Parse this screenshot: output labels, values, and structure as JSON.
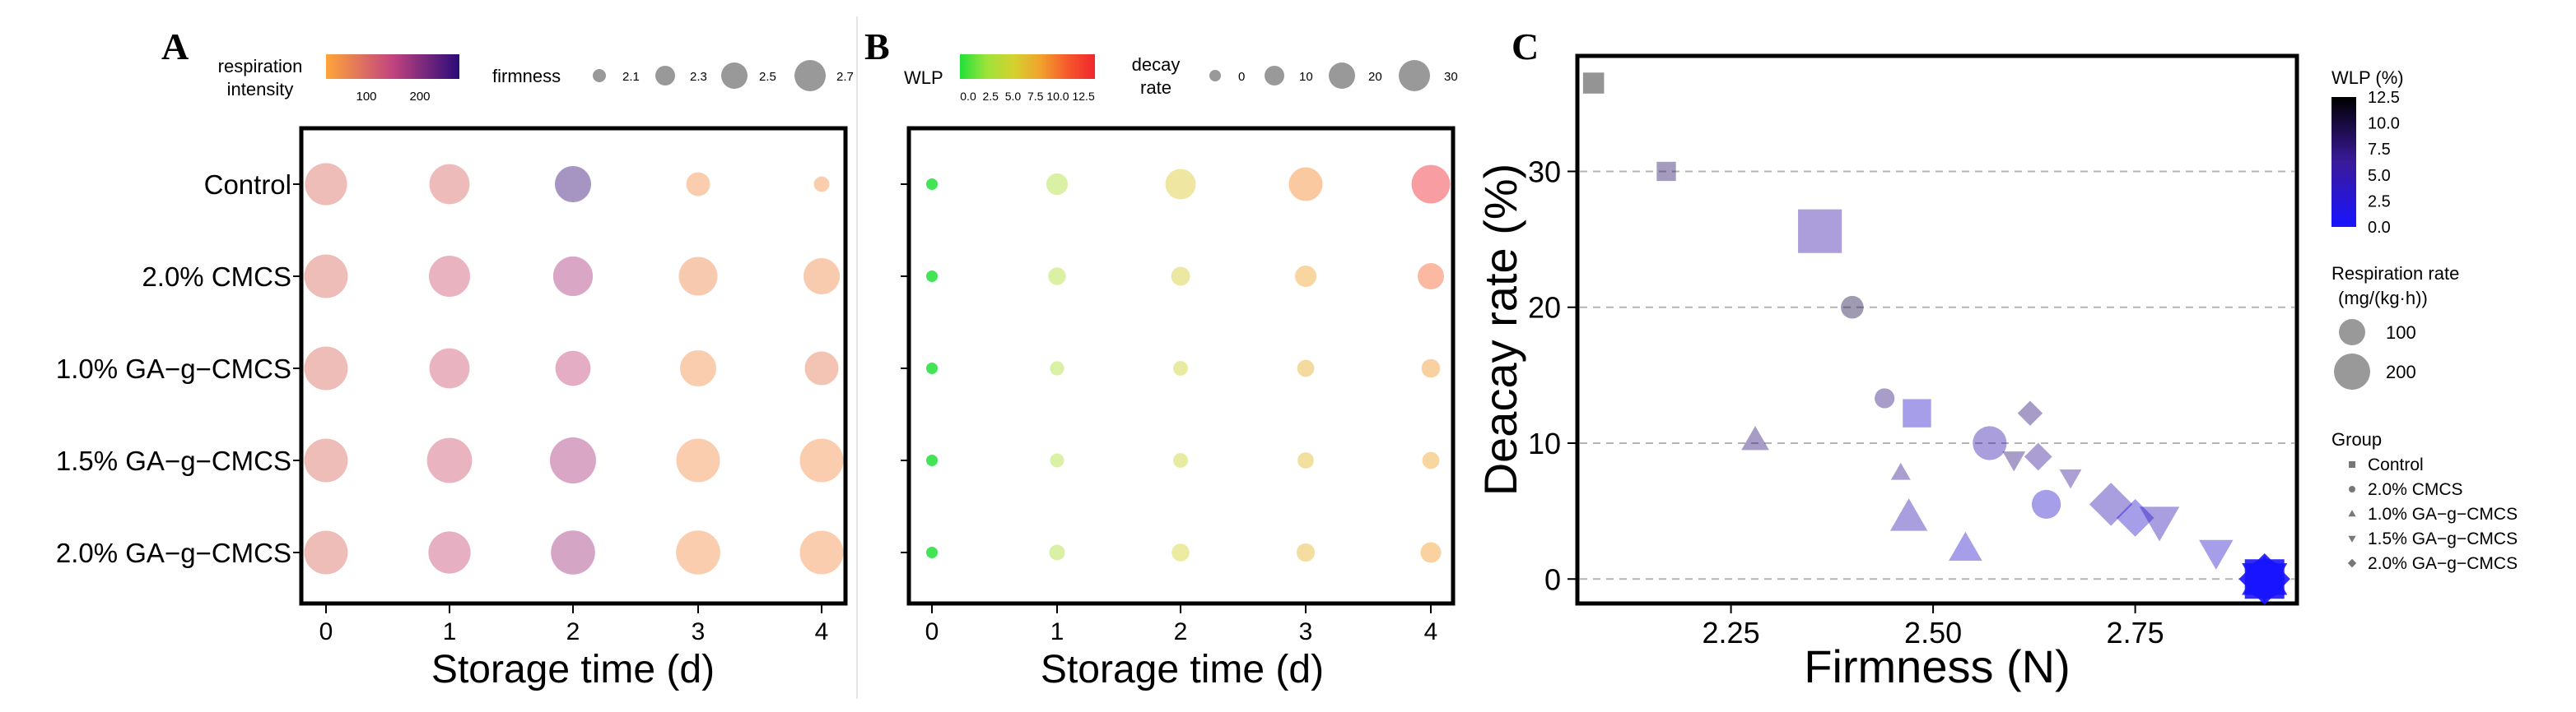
{
  "chart_data": [
    {
      "panel": "A",
      "type": "scatter",
      "xlabel": "Storage time (d)",
      "x_ticks": [
        "0",
        "1",
        "2",
        "3",
        "4"
      ],
      "categories": [
        "Control",
        "2.0% CMCS",
        "1.0% GA−g−CMCS",
        "1.5% GA−g−CMCS",
        "2.0% GA−g−CMCS"
      ],
      "color_legend": {
        "title": "respiration\nintensity",
        "ticks": [
          100,
          200
        ],
        "range": [
          50,
          240
        ]
      },
      "size_legend": {
        "title": "firmness",
        "ticks": [
          "2.1",
          "2.3",
          "2.5",
          "2.7"
        ]
      },
      "series": [
        {
          "name": "Control",
          "firmness": [
            2.62,
            2.58,
            2.5,
            2.25,
            2.08
          ],
          "respiration": [
            105,
            110,
            230,
            70,
            68
          ]
        },
        {
          "name": "2.0% CMCS",
          "firmness": [
            2.65,
            2.6,
            2.57,
            2.55,
            2.5
          ],
          "respiration": [
            105,
            125,
            160,
            78,
            75
          ]
        },
        {
          "name": "1.0% GA−g−CMCS",
          "firmness": [
            2.65,
            2.58,
            2.48,
            2.5,
            2.45
          ],
          "respiration": [
            105,
            125,
            140,
            70,
            90
          ]
        },
        {
          "name": "1.5% GA−g−CMCS",
          "firmness": [
            2.65,
            2.68,
            2.7,
            2.65,
            2.65
          ],
          "respiration": [
            105,
            125,
            160,
            70,
            70
          ]
        },
        {
          "name": "2.0% GA−g−CMCS",
          "firmness": [
            2.65,
            2.62,
            2.66,
            2.66,
            2.65
          ],
          "respiration": [
            105,
            135,
            165,
            70,
            70
          ]
        }
      ]
    },
    {
      "panel": "B",
      "type": "scatter",
      "xlabel": "Storage time (d)",
      "x_ticks": [
        "0",
        "1",
        "2",
        "3",
        "4"
      ],
      "categories": [
        "Control",
        "2.0% CMCS",
        "1.0% GA−g−CMCS",
        "1.5% GA−g−CMCS",
        "2.0% GA−g−CMCS"
      ],
      "color_legend": {
        "title": "WLP",
        "ticks": [
          "0.0",
          "2.5",
          "5.0",
          "7.5",
          "10.0",
          "12.5"
        ],
        "range": [
          0,
          12.5
        ]
      },
      "size_legend": {
        "title": "decay\nrate",
        "ticks": [
          "0",
          "10",
          "20",
          "30"
        ]
      },
      "series": [
        {
          "name": "Control",
          "wlp": [
            0,
            3.2,
            5.5,
            8.4,
            12.5
          ],
          "decay": [
            0,
            13.5,
            25.6,
            30,
            36.5
          ]
        },
        {
          "name": "2.0% CMCS",
          "wlp": [
            0,
            3.4,
            5.2,
            7.5,
            9.6
          ],
          "decay": [
            0,
            8.2,
            10,
            13.3,
            20
          ]
        },
        {
          "name": "1.0% GA−g−CMCS",
          "wlp": [
            0,
            3.2,
            4.8,
            6.8,
            7.8
          ],
          "decay": [
            0,
            3.5,
            4.5,
            7.5,
            9.5
          ]
        },
        {
          "name": "1.5% GA−g−CMCS",
          "wlp": [
            0,
            3.2,
            4.6,
            6.2,
            7.4
          ],
          "decay": [
            0,
            3.3,
            4.5,
            6.5,
            7.5
          ]
        },
        {
          "name": "2.0% GA−g−CMCS",
          "wlp": [
            0,
            3.2,
            4.9,
            6.5,
            7.7
          ],
          "decay": [
            0,
            5.5,
            8.5,
            9,
            12.2
          ]
        }
      ]
    },
    {
      "panel": "C",
      "type": "scatter",
      "xlabel": "Firmness (N)",
      "ylabel": "Deacay rate (%)",
      "xlim": [
        2.06,
        2.95
      ],
      "ylim": [
        -1.8,
        38.5
      ],
      "x_ticks": [
        "2.25",
        "2.50",
        "2.75"
      ],
      "y_ticks": [
        "0",
        "10",
        "20",
        "30"
      ],
      "grid": "horizontal dashed",
      "legends": {
        "wlp": {
          "title": "WLP (%)",
          "ticks": [
            "12.5",
            "10.0",
            "7.5",
            "5.0",
            "2.5",
            "0.0"
          ]
        },
        "size": {
          "title": "Respiration rate",
          "subtitle": "(mg/(kg·h))",
          "entries": [
            "100",
            "200"
          ]
        },
        "group": {
          "title": "Group",
          "entries": [
            "Control",
            "2.0% CMCS",
            "1.0% GA−g−CMCS",
            "1.5% GA−g−CMCS",
            "2.0% GA−g−CMCS"
          ]
        }
      },
      "points": [
        {
          "group": "Control",
          "firmness": 2.08,
          "decay": 36.5,
          "respiration": 68,
          "wlp": 12.5
        },
        {
          "group": "Control",
          "firmness": 2.17,
          "decay": 30,
          "respiration": 55,
          "wlp": 8.4
        },
        {
          "group": "Control",
          "firmness": 2.36,
          "decay": 25.6,
          "respiration": 230,
          "wlp": 5.5
        },
        {
          "group": "Control",
          "firmness": 2.48,
          "decay": 12.2,
          "respiration": 120,
          "wlp": 3.2
        },
        {
          "group": "Control",
          "firmness": 2.91,
          "decay": 0,
          "respiration": 200,
          "wlp": 0
        },
        {
          "group": "2.0% CMCS",
          "firmness": 2.4,
          "decay": 20,
          "respiration": 80,
          "wlp": 9.6
        },
        {
          "group": "2.0% CMCS",
          "firmness": 2.44,
          "decay": 13.3,
          "respiration": 60,
          "wlp": 7.5
        },
        {
          "group": "2.0% CMCS",
          "firmness": 2.57,
          "decay": 10,
          "respiration": 160,
          "wlp": 5.2
        },
        {
          "group": "2.0% CMCS",
          "firmness": 2.64,
          "decay": 5.5,
          "respiration": 125,
          "wlp": 3.4
        },
        {
          "group": "2.0% CMCS",
          "firmness": 2.91,
          "decay": 0,
          "respiration": 200,
          "wlp": 0
        },
        {
          "group": "1.0% GA−g−CMCS",
          "firmness": 2.28,
          "decay": 10.2,
          "respiration": 90,
          "wlp": 7.8
        },
        {
          "group": "1.0% GA−g−CMCS",
          "firmness": 2.46,
          "decay": 7.8,
          "respiration": 40,
          "wlp": 6.8
        },
        {
          "group": "1.0% GA−g−CMCS",
          "firmness": 2.47,
          "decay": 4.5,
          "respiration": 150,
          "wlp": 4.8
        },
        {
          "group": "1.0% GA−g−CMCS",
          "firmness": 2.54,
          "decay": 2.2,
          "respiration": 125,
          "wlp": 3.2
        },
        {
          "group": "1.0% GA−g−CMCS",
          "firmness": 2.91,
          "decay": 0,
          "respiration": 200,
          "wlp": 0
        },
        {
          "group": "1.5% GA−g−CMCS",
          "firmness": 2.6,
          "decay": 8.8,
          "respiration": 60,
          "wlp": 7.4
        },
        {
          "group": "1.5% GA−g−CMCS",
          "firmness": 2.67,
          "decay": 7.5,
          "respiration": 55,
          "wlp": 6.2
        },
        {
          "group": "1.5% GA−g−CMCS",
          "firmness": 2.78,
          "decay": 4.3,
          "respiration": 165,
          "wlp": 4.6
        },
        {
          "group": "1.5% GA−g−CMCS",
          "firmness": 2.85,
          "decay": 2.0,
          "respiration": 130,
          "wlp": 3.2
        },
        {
          "group": "1.5% GA−g−CMCS",
          "firmness": 2.91,
          "decay": 0,
          "respiration": 200,
          "wlp": 0
        },
        {
          "group": "2.0% GA−g−CMCS",
          "firmness": 2.62,
          "decay": 12.2,
          "respiration": 55,
          "wlp": 7.7
        },
        {
          "group": "2.0% GA−g−CMCS",
          "firmness": 2.63,
          "decay": 9,
          "respiration": 70,
          "wlp": 6.5
        },
        {
          "group": "2.0% GA−g−CMCS",
          "firmness": 2.72,
          "decay": 5.5,
          "respiration": 155,
          "wlp": 4.9
        },
        {
          "group": "2.0% GA−g−CMCS",
          "firmness": 2.75,
          "decay": 4.5,
          "respiration": 125,
          "wlp": 3.2
        },
        {
          "group": "2.0% GA−g−CMCS",
          "firmness": 2.91,
          "decay": 0,
          "respiration": 200,
          "wlp": 0
        }
      ]
    }
  ],
  "panel_labels": {
    "a": "A",
    "b": "B",
    "c": "C"
  },
  "legend_text": {
    "a_color_title_line1": "respiration",
    "a_color_title_line2": "intensity",
    "a_color_tick_1": "100",
    "a_color_tick_2": "200",
    "a_size_title": "firmness",
    "a_size_tick_1": "2.1",
    "a_size_tick_2": "2.3",
    "a_size_tick_3": "2.5",
    "a_size_tick_4": "2.7",
    "b_color_title": "WLP",
    "b_color_ticks": "0.0  2.5  5.0  7.5 10.0 12.5",
    "b_size_title_line1": "decay",
    "b_size_title_line2": "rate",
    "b_size_tick_1": "0",
    "b_size_tick_2": "10",
    "b_size_tick_3": "20",
    "b_size_tick_4": "30",
    "c_wlp_title": "WLP (%)",
    "c_resp_title": "Respiration rate",
    "c_resp_subtitle": "(mg/(kg·h))",
    "c_resp_1": "100",
    "c_resp_2": "200",
    "c_group_title": "Group"
  },
  "colors": {
    "resp_low": "#ffa53a",
    "resp_mid": "#c2447f",
    "resp_high": "#2a0b7a",
    "wlp_stops": [
      "#22e03a",
      "#9ee33a",
      "#d5d12f",
      "#f1a12c",
      "#f6582c",
      "#f0262e"
    ],
    "wlp_c_low": "#1a14ff",
    "wlp_c_high": "#000000",
    "point_alpha_panel_a_b": 0.45,
    "point_alpha_panel_c": 0.42,
    "axis": "#000000",
    "grid": "#b4b4b4"
  }
}
